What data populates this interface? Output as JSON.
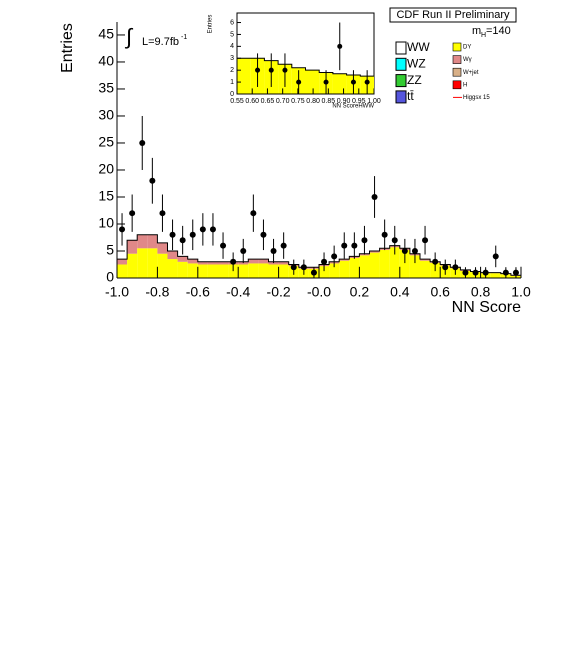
{
  "chart_data": [
    {
      "type": "histogram",
      "banner": "CDF Run II Preliminary",
      "xlabel": "NN Score",
      "ylabel": "Entries",
      "lumi_sign": "∫",
      "lumi": "L=9.7fb",
      "lumi_exp": "-1",
      "mass": {
        "m": "m",
        "sub": "H",
        "rest": "=140"
      },
      "xlim": [
        -1.0,
        1.0
      ],
      "ylim": [
        0,
        47.4
      ],
      "xticks": [
        {
          "value": -1.0,
          "label": "-1.0"
        },
        -0.8,
        -0.6,
        -0.4,
        -0.2,
        {
          "value": 0,
          "label": "-0.0"
        },
        0.2,
        0.4,
        0.6,
        0.8,
        {
          "value": 1.0,
          "label": "1.0"
        }
      ],
      "yticks": [
        0,
        5,
        10,
        15,
        20,
        25,
        30,
        35,
        40,
        45
      ],
      "bins": [
        -1,
        -0.95,
        -0.9,
        -0.85,
        -0.8,
        -0.75,
        -0.7,
        -0.65,
        -0.6,
        -0.55,
        -0.5,
        -0.45,
        -0.4,
        -0.35,
        -0.3,
        -0.25,
        -0.2,
        -0.15,
        -0.1,
        -0.05,
        0,
        0.05,
        0.1,
        0.15,
        0.2,
        0.25,
        0.3,
        0.35,
        0.4,
        0.45,
        0.5,
        0.55,
        0.6,
        0.65,
        0.7,
        0.75,
        0.8,
        0.85,
        0.9,
        0.95,
        1
      ],
      "series": [
        {
          "name": "DY",
          "color": "#ffff00",
          "values": [
            2.5,
            4.5,
            5.5,
            5.5,
            4.5,
            3.5,
            3,
            2.7,
            2.5,
            2.5,
            2.5,
            2.5,
            2.5,
            2.7,
            2.7,
            2.5,
            2.5,
            2.2,
            1.7,
            1.7,
            2.2,
            2.7,
            3.2,
            3.7,
            4.2,
            4.7,
            5.2,
            5.7,
            5.2,
            4.2,
            3.2,
            2.8,
            2.3,
            1.8,
            1.3,
            1.1,
            0.9,
            0.9,
            0.7,
            0.4
          ]
        },
        {
          "name": "Wγ",
          "color": "#e08888",
          "values": [
            1,
            2.5,
            2.5,
            2.5,
            2,
            1.5,
            1,
            0.8,
            0.5,
            0.5,
            0.5,
            0.5,
            0.5,
            0.8,
            0.8,
            0.5,
            0.5,
            0.3,
            0.3,
            0.3,
            0.3,
            0.3,
            0.3,
            0.3,
            0.3,
            0.3,
            0.3,
            0.3,
            0.3,
            0.3,
            0.3,
            0.2,
            0.2,
            0.2,
            0.2,
            0.1,
            0.1,
            0.1,
            0.1,
            0.1
          ]
        }
      ],
      "other_legend": [
        {
          "name": "WW",
          "color": "#ffffff"
        },
        {
          "name": "WZ",
          "color": "#00ffff"
        },
        {
          "name": "ZZ",
          "color": "#33cc33"
        },
        {
          "name": "tt̄",
          "color": "#5555dd"
        },
        {
          "name": "W+jet",
          "color": "#d8b088"
        },
        {
          "name": "H",
          "color": "#ff0000"
        },
        {
          "name": "Higgsx 15",
          "color": "#ff0000",
          "style": "line"
        }
      ],
      "points": {
        "x": [
          -0.975,
          -0.925,
          -0.875,
          -0.825,
          -0.775,
          -0.725,
          -0.675,
          -0.625,
          -0.575,
          -0.525,
          -0.475,
          -0.425,
          -0.375,
          -0.325,
          -0.275,
          -0.225,
          -0.175,
          -0.125,
          -0.075,
          -0.025,
          0.025,
          0.075,
          0.125,
          0.175,
          0.225,
          0.275,
          0.325,
          0.375,
          0.425,
          0.475,
          0.525,
          0.575,
          0.625,
          0.675,
          0.725,
          0.775,
          0.825,
          0.875,
          0.925,
          0.975
        ],
        "values": [
          9,
          12,
          25,
          18,
          12,
          8,
          7,
          8,
          9,
          9,
          6,
          3,
          5,
          12,
          8,
          5,
          6,
          2,
          2,
          1,
          3,
          4,
          6,
          6,
          7,
          15,
          8,
          7,
          5,
          5,
          7,
          3,
          2,
          2,
          1,
          1,
          1,
          4,
          1,
          1
        ],
        "errors": [
          3,
          3.46,
          5,
          4.24,
          3.46,
          2.83,
          2.65,
          2.83,
          3,
          3,
          2.45,
          1.73,
          2.24,
          3.46,
          2.83,
          2.24,
          2.45,
          1.41,
          1.41,
          1,
          1.73,
          2,
          2.45,
          2.45,
          2.65,
          3.87,
          2.83,
          2.65,
          2.24,
          2.24,
          2.65,
          1.73,
          1.41,
          1.41,
          1,
          1,
          1,
          2,
          1,
          1
        ]
      }
    },
    {
      "type": "histogram",
      "xlabel": "NN ScoreHWW",
      "ylabel": "Entries",
      "xlim": [
        0.55,
        1.0
      ],
      "ylim": [
        0,
        6.8
      ],
      "xticks": [
        0.55,
        {
          "value": 0.6,
          "label": "0.60"
        },
        0.65,
        {
          "value": 0.7,
          "label": "0.70"
        },
        0.75,
        {
          "value": 0.8,
          "label": "0.80"
        },
        0.85,
        {
          "value": 0.9,
          "label": "0.90"
        },
        0.95,
        {
          "value": 1.0,
          "label": "1.00"
        }
      ],
      "yticks": [
        0,
        1,
        2,
        3,
        4,
        5,
        6
      ],
      "bins": [
        0.55,
        0.595,
        0.64,
        0.685,
        0.73,
        0.775,
        0.82,
        0.865,
        0.91,
        0.955,
        1.0
      ],
      "series": [
        {
          "color": "#ffff00",
          "values": [
            3,
            3,
            2.8,
            2.5,
            2.2,
            2,
            1.8,
            1.7,
            1.6,
            1.5
          ]
        }
      ],
      "points": {
        "x": [
          0.6175,
          0.6625,
          0.7075,
          0.7525,
          0.8425,
          0.8875,
          0.9325,
          0.9775
        ],
        "values": [
          2,
          2,
          2,
          1,
          1,
          4,
          1,
          1
        ],
        "errors": [
          1.41,
          1.41,
          1.41,
          1,
          1,
          2,
          1,
          1
        ]
      }
    }
  ]
}
